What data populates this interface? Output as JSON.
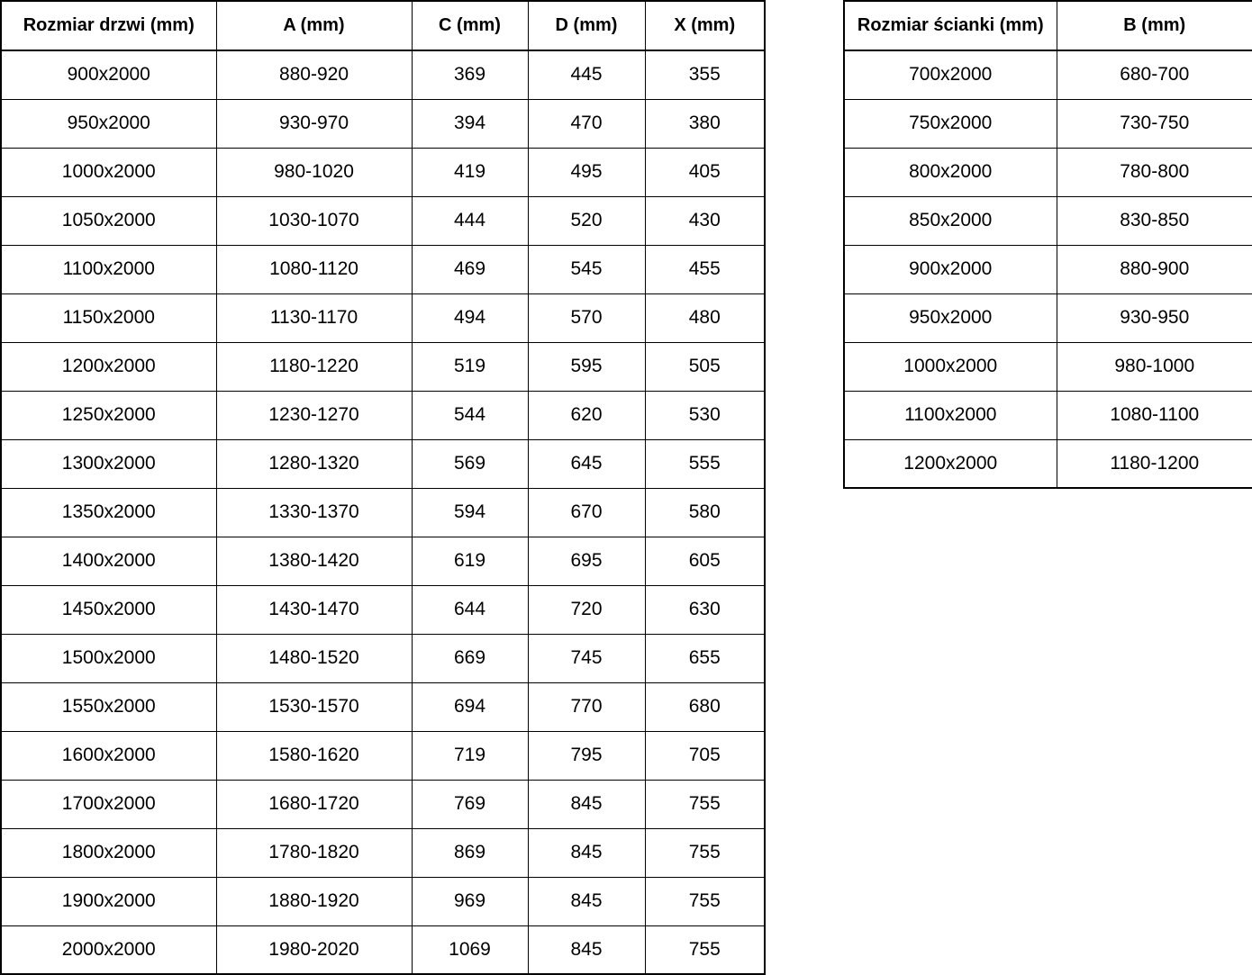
{
  "page": {
    "background_color": "#ffffff",
    "text_color": "#000000",
    "border_color": "#000000"
  },
  "chart_data": [
    {
      "type": "table",
      "name": "door-size-table",
      "columns": [
        "Rozmiar drzwi (mm)",
        "A (mm)",
        "C (mm)",
        "D (mm)",
        "X (mm)"
      ],
      "rows": [
        [
          "900x2000",
          "880-920",
          "369",
          "445",
          "355"
        ],
        [
          "950x2000",
          "930-970",
          "394",
          "470",
          "380"
        ],
        [
          "1000x2000",
          "980-1020",
          "419",
          "495",
          "405"
        ],
        [
          "1050x2000",
          "1030-1070",
          "444",
          "520",
          "430"
        ],
        [
          "1100x2000",
          "1080-1120",
          "469",
          "545",
          "455"
        ],
        [
          "1150x2000",
          "1130-1170",
          "494",
          "570",
          "480"
        ],
        [
          "1200x2000",
          "1180-1220",
          "519",
          "595",
          "505"
        ],
        [
          "1250x2000",
          "1230-1270",
          "544",
          "620",
          "530"
        ],
        [
          "1300x2000",
          "1280-1320",
          "569",
          "645",
          "555"
        ],
        [
          "1350x2000",
          "1330-1370",
          "594",
          "670",
          "580"
        ],
        [
          "1400x2000",
          "1380-1420",
          "619",
          "695",
          "605"
        ],
        [
          "1450x2000",
          "1430-1470",
          "644",
          "720",
          "630"
        ],
        [
          "1500x2000",
          "1480-1520",
          "669",
          "745",
          "655"
        ],
        [
          "1550x2000",
          "1530-1570",
          "694",
          "770",
          "680"
        ],
        [
          "1600x2000",
          "1580-1620",
          "719",
          "795",
          "705"
        ],
        [
          "1700x2000",
          "1680-1720",
          "769",
          "845",
          "755"
        ],
        [
          "1800x2000",
          "1780-1820",
          "869",
          "845",
          "755"
        ],
        [
          "1900x2000",
          "1880-1920",
          "969",
          "845",
          "755"
        ],
        [
          "2000x2000",
          "1980-2020",
          "1069",
          "845",
          "755"
        ]
      ]
    },
    {
      "type": "table",
      "name": "wall-size-table",
      "columns": [
        "Rozmiar ścianki (mm)",
        "B (mm)"
      ],
      "rows": [
        [
          "700x2000",
          "680-700"
        ],
        [
          "750x2000",
          "730-750"
        ],
        [
          "800x2000",
          "780-800"
        ],
        [
          "850x2000",
          "830-850"
        ],
        [
          "900x2000",
          "880-900"
        ],
        [
          "950x2000",
          "930-950"
        ],
        [
          "1000x2000",
          "980-1000"
        ],
        [
          "1100x2000",
          "1080-1100"
        ],
        [
          "1200x2000",
          "1180-1200"
        ]
      ]
    }
  ]
}
